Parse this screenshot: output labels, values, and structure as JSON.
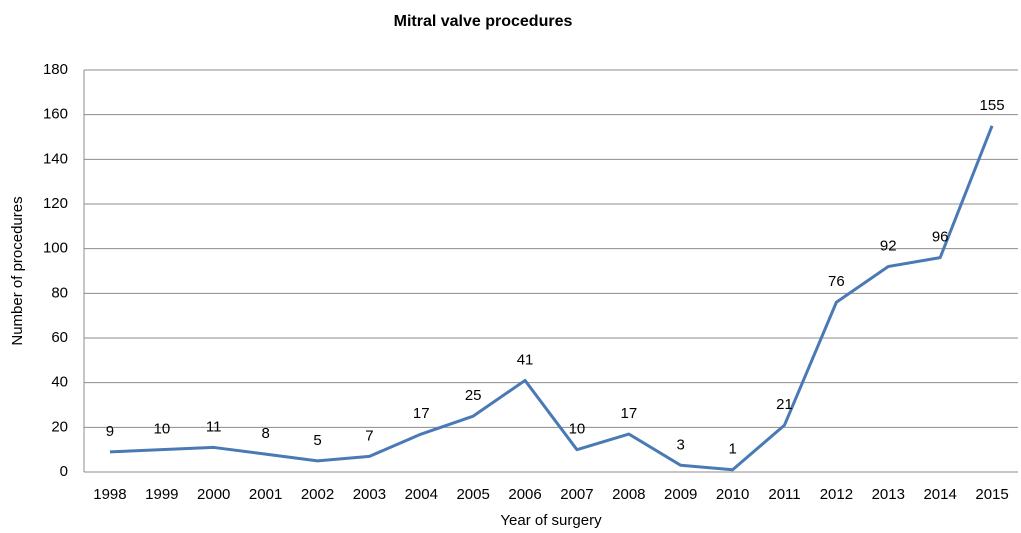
{
  "chart_data": {
    "type": "line",
    "title": "Mitral valve procedures",
    "x_label": "Year of surgery",
    "y_label": "Number of procedures",
    "categories": [
      "1998",
      "1999",
      "2000",
      "2001",
      "2002",
      "2003",
      "2004",
      "2005",
      "2006",
      "2007",
      "2008",
      "2009",
      "2010",
      "2011",
      "2012",
      "2013",
      "2014",
      "2015"
    ],
    "values": [
      9,
      10,
      11,
      8,
      5,
      7,
      17,
      25,
      41,
      10,
      17,
      3,
      1,
      21,
      76,
      92,
      96,
      155
    ],
    "color": "#4a7ab5",
    "ylim": [
      0,
      180
    ],
    "yticks": [
      0,
      20,
      40,
      60,
      80,
      100,
      120,
      140,
      160,
      180
    ],
    "grid": true
  }
}
